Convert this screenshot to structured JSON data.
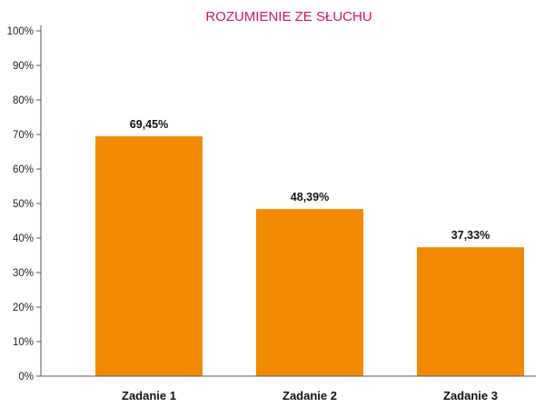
{
  "chart_data": {
    "type": "bar",
    "title": "ROZUMIENIE ZE SŁUCHU",
    "xlabel": "",
    "ylabel": "",
    "categories": [
      "Zadanie 1",
      "Zadanie 2",
      "Zadanie 3"
    ],
    "values": [
      69.45,
      48.39,
      37.33
    ],
    "data_labels": [
      "69,45%",
      "48,39%",
      "37,33%"
    ],
    "ylim": [
      0,
      100
    ],
    "y_ticks": [
      0,
      10,
      20,
      30,
      40,
      50,
      60,
      70,
      80,
      90,
      100
    ],
    "y_tick_labels": [
      "0%",
      "10%",
      "20%",
      "30%",
      "40%",
      "50%",
      "60%",
      "70%",
      "80%",
      "90%",
      "100%"
    ],
    "bar_color": "#f18a00",
    "title_color": "#d4145a",
    "grid": false,
    "legend": "none"
  }
}
